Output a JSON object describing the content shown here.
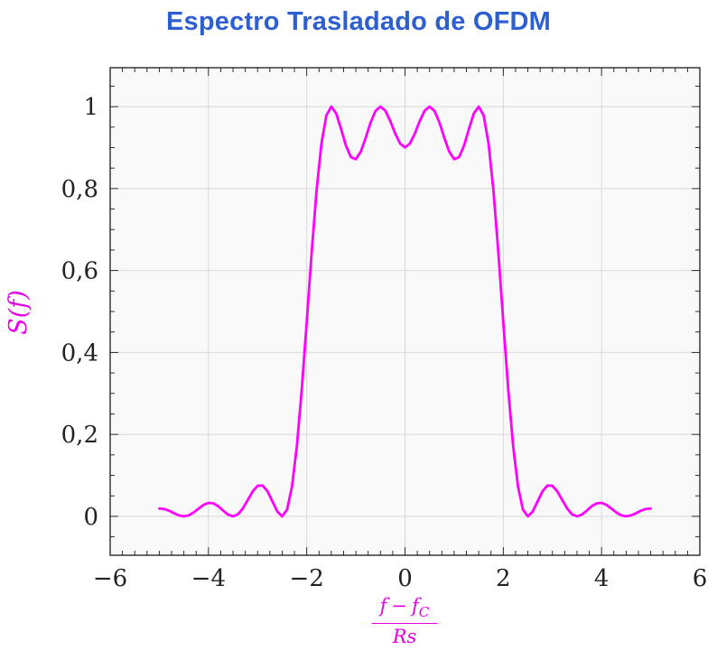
{
  "title": "Espectro Trasladado de OFDM",
  "ylabel_text": "S(f)",
  "xlabel_fraction": {
    "num_f1": "f",
    "num_minus": "−",
    "num_f2": "f",
    "num_sub": "C",
    "den": "Rs"
  },
  "colors": {
    "title": "#2d5fd0",
    "curve": "#ff00ff",
    "labels": "#e500e5",
    "grid": "#d8d8d8",
    "frame": "#1a1a1a",
    "tick": "#1a1a1a",
    "tick_label": "#222222",
    "plot_bg": "#f9f9f9",
    "page_bg": "#ffffff"
  },
  "chart_data": {
    "type": "line",
    "title": "Espectro Trasladado de OFDM",
    "xlabel": "(f − f_C) / Rs",
    "ylabel": "S(f)",
    "xlim": [
      -6,
      6
    ],
    "ylim": [
      -0.095,
      1.095
    ],
    "grid": true,
    "x_ticks": {
      "values": [
        -6,
        -4,
        -2,
        0,
        2,
        4,
        6
      ],
      "labels": [
        "−6",
        "−4",
        "−2",
        "0",
        "2",
        "4",
        "6"
      ]
    },
    "y_ticks": {
      "values": [
        0,
        0.2,
        0.4,
        0.6,
        0.8,
        1
      ],
      "labels": [
        "0",
        "0,2",
        "0,4",
        "0,6",
        "0,8",
        "1"
      ]
    },
    "minor_tick_step_x": 0.25,
    "minor_tick_step_y": 0.05,
    "subcarriers": [
      -1.5,
      -0.5,
      0.5,
      1.5
    ],
    "series": [
      {
        "name": "S(f)",
        "color": "#ff00ff",
        "x": [
          -5.0,
          -4.9,
          -4.8,
          -4.7,
          -4.6,
          -4.5,
          -4.4,
          -4.3,
          -4.2,
          -4.1,
          -4.0,
          -3.9,
          -3.8,
          -3.7,
          -3.6,
          -3.5,
          -3.4,
          -3.3,
          -3.2,
          -3.1,
          -3.0,
          -2.9,
          -2.8,
          -2.7,
          -2.6,
          -2.5,
          -2.4,
          -2.3,
          -2.2,
          -2.1,
          -2.0,
          -1.9,
          -1.8,
          -1.7,
          -1.6,
          -1.5,
          -1.4,
          -1.3,
          -1.2,
          -1.1,
          -1.0,
          -0.9,
          -0.8,
          -0.7,
          -0.6,
          -0.5,
          -0.4,
          -0.3,
          -0.2,
          -0.1,
          0.0,
          0.1,
          0.2,
          0.3,
          0.4,
          0.5,
          0.6,
          0.7,
          0.8,
          0.9,
          1.0,
          1.1,
          1.2,
          1.3,
          1.4,
          1.5,
          1.6,
          1.7,
          1.8,
          1.9,
          2.0,
          2.1,
          2.2,
          2.3,
          2.4,
          2.5,
          2.6,
          2.7,
          2.8,
          2.9,
          3.0,
          3.1,
          3.2,
          3.3,
          3.4,
          3.5,
          3.6,
          3.7,
          3.8,
          3.9,
          4.0,
          4.1,
          4.2,
          4.3,
          4.4,
          4.5,
          4.6,
          4.7,
          4.8,
          4.9,
          5.0
        ],
        "y": [
          0.019,
          0.018,
          0.0137,
          0.0076,
          0.0022,
          0.0,
          0.0025,
          0.0095,
          0.019,
          0.0279,
          0.0328,
          0.0317,
          0.0246,
          0.0139,
          0.0042,
          0.0,
          0.0049,
          0.0192,
          0.0399,
          0.0608,
          0.0745,
          0.0753,
          0.0615,
          0.0369,
          0.0118,
          0.0,
          0.0164,
          0.0724,
          0.1722,
          0.311,
          0.4748,
          0.6434,
          0.7947,
          0.9101,
          0.9787,
          1.0,
          0.9833,
          0.9451,
          0.9042,
          0.8767,
          0.8718,
          0.89,
          0.924,
          0.9614,
          0.9897,
          1.0,
          0.9902,
          0.965,
          0.9344,
          0.9099,
          0.9006,
          0.9099,
          0.9344,
          0.965,
          0.9902,
          1.0,
          0.9897,
          0.9614,
          0.924,
          0.89,
          0.8718,
          0.8767,
          0.9042,
          0.9451,
          0.9833,
          1.0,
          0.9787,
          0.9101,
          0.7947,
          0.6434,
          0.4748,
          0.311,
          0.1722,
          0.0724,
          0.0164,
          0.0,
          0.0118,
          0.0369,
          0.0615,
          0.0753,
          0.0745,
          0.0608,
          0.0399,
          0.0192,
          0.0049,
          0.0,
          0.0042,
          0.0139,
          0.0246,
          0.0317,
          0.0328,
          0.0279,
          0.019,
          0.0095,
          0.0025,
          0.0,
          0.0022,
          0.0076,
          0.0137,
          0.018,
          0.019
        ]
      }
    ]
  }
}
